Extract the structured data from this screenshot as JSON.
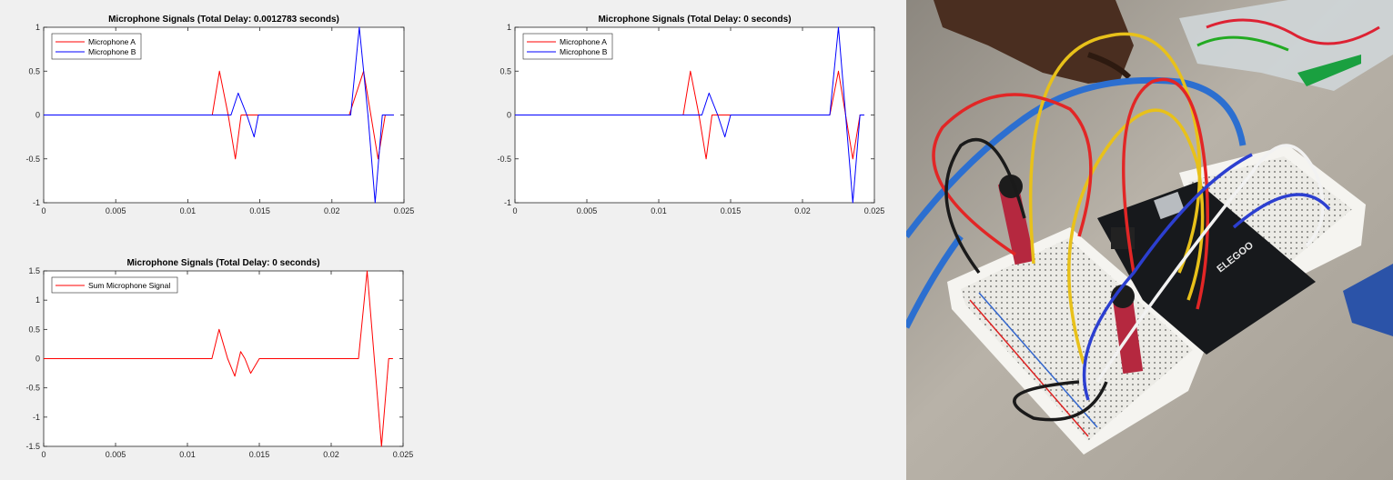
{
  "figure_window": {
    "background": "#f0f0f0",
    "axes_background": "#ffffff"
  },
  "chart_data": [
    {
      "type": "line",
      "title": "Microphone Signals (Total Delay: 0.0012783 seconds)",
      "xlabel": "",
      "ylabel": "",
      "xlim": [
        0,
        0.025
      ],
      "ylim": [
        -1,
        1
      ],
      "xticks": [
        "0",
        "0.005",
        "0.01",
        "0.015",
        "0.02",
        "0.025"
      ],
      "yticks": [
        "1",
        "0.5",
        "0",
        "-0.5",
        "-1"
      ],
      "grid": false,
      "legend_position": "top-left",
      "series": [
        {
          "name": "Microphone A",
          "color": "#ff0000",
          "x": [
            0,
            0.0117,
            0.0122,
            0.0128,
            0.0133,
            0.0137,
            0.014,
            0.0212,
            0.0222,
            0.0227,
            0.0232,
            0.0237,
            0.024,
            0.0243
          ],
          "y": [
            0,
            0,
            0.5,
            0,
            -0.5,
            0,
            0,
            0,
            0.5,
            0,
            -0.5,
            0,
            0,
            0
          ]
        },
        {
          "name": "Microphone B",
          "color": "#0000ff",
          "x": [
            0,
            0.013,
            0.0135,
            0.0141,
            0.0146,
            0.0149,
            0.0213,
            0.0219,
            0.0225,
            0.023,
            0.0235,
            0.0238,
            0.0243
          ],
          "y": [
            0,
            0,
            0.25,
            0,
            -0.25,
            0,
            0,
            1,
            0,
            -1,
            0,
            0,
            0
          ]
        }
      ]
    },
    {
      "type": "line",
      "title": "Microphone Signals (Total Delay: 0 seconds)",
      "xlabel": "",
      "ylabel": "",
      "xlim": [
        0,
        0.025
      ],
      "ylim": [
        -1,
        1
      ],
      "xticks": [
        "0",
        "0.005",
        "0.01",
        "0.015",
        "0.02",
        "0.025"
      ],
      "yticks": [
        "1",
        "0.5",
        "0",
        "-0.5",
        "-1"
      ],
      "grid": false,
      "legend_position": "top-left",
      "series": [
        {
          "name": "Microphone A",
          "color": "#ff0000",
          "x": [
            0,
            0.0117,
            0.0122,
            0.0128,
            0.0133,
            0.0137,
            0.014,
            0.0219,
            0.0225,
            0.023,
            0.0235,
            0.024,
            0.0243
          ],
          "y": [
            0,
            0,
            0.5,
            0,
            -0.5,
            0,
            0,
            0,
            0.5,
            0,
            -0.5,
            0,
            0
          ]
        },
        {
          "name": "Microphone B",
          "color": "#0000ff",
          "x": [
            0,
            0.013,
            0.0135,
            0.0141,
            0.0146,
            0.015,
            0.0219,
            0.0225,
            0.023,
            0.0235,
            0.024,
            0.0243
          ],
          "y": [
            0,
            0,
            0.25,
            0,
            -0.25,
            0,
            0,
            1,
            0,
            -1,
            0,
            0
          ]
        }
      ]
    },
    {
      "type": "line",
      "title": "Microphone Signals (Total Delay: 0 seconds)",
      "xlabel": "",
      "ylabel": "",
      "xlim": [
        0,
        0.025
      ],
      "ylim": [
        -1.5,
        1.5
      ],
      "xticks": [
        "0",
        "0.005",
        "0.01",
        "0.015",
        "0.02",
        "0.025"
      ],
      "yticks": [
        "1.5",
        "1",
        "0.5",
        "0",
        "-0.5",
        "-1",
        "-1.5"
      ],
      "grid": false,
      "legend_position": "top-left",
      "series": [
        {
          "name": "Sum Microphone Signal",
          "color": "#ff0000",
          "x": [
            0,
            0.0117,
            0.0122,
            0.0128,
            0.0133,
            0.0137,
            0.014,
            0.0144,
            0.015,
            0.0219,
            0.0225,
            0.023,
            0.0235,
            0.024,
            0.0243
          ],
          "y": [
            0,
            0,
            0.5,
            0,
            -0.3,
            0.12,
            0,
            -0.25,
            0,
            0,
            1.5,
            0,
            -1.5,
            0,
            0
          ]
        }
      ]
    }
  ]
}
